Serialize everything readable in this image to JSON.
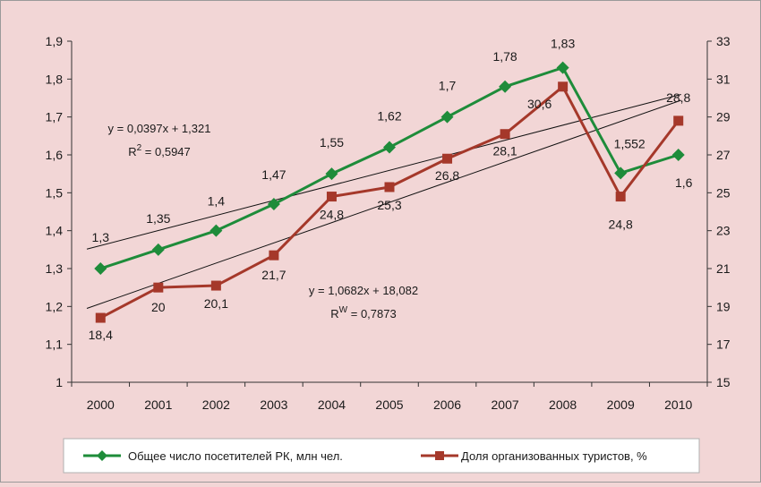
{
  "chart_data": {
    "type": "line",
    "categories": [
      "2000",
      "2001",
      "2002",
      "2003",
      "2004",
      "2005",
      "2006",
      "2007",
      "2008",
      "2009",
      "2010"
    ],
    "left_axis": {
      "min": 1,
      "max": 1.9,
      "step": 0.1,
      "ticks": [
        "1",
        "1,1",
        "1,2",
        "1,3",
        "1,4",
        "1,5",
        "1,6",
        "1,7",
        "1,8",
        "1,9"
      ]
    },
    "right_axis": {
      "min": 15,
      "max": 33,
      "step": 2,
      "ticks": [
        "15",
        "17",
        "19",
        "21",
        "23",
        "25",
        "27",
        "29",
        "31",
        "33"
      ]
    },
    "series": [
      {
        "name": "Общее число посетителей РК, млн чел.",
        "axis": "left",
        "color": "#1e8c3a",
        "marker": "diamond",
        "values": [
          1.3,
          1.35,
          1.4,
          1.47,
          1.55,
          1.62,
          1.7,
          1.78,
          1.83,
          1.552,
          1.6
        ],
        "labels": [
          "1,3",
          "1,35",
          "1,4",
          "1,47",
          "1,55",
          "1,62",
          "1,7",
          "1,78",
          "1,83",
          "1,552",
          "1,6"
        ]
      },
      {
        "name": "Доля организованных туристов, %",
        "axis": "right",
        "color": "#a5382a",
        "marker": "square",
        "values": [
          18.4,
          20,
          20.1,
          21.7,
          24.8,
          25.3,
          26.8,
          28.1,
          30.6,
          24.8,
          28.8
        ],
        "labels": [
          "18,4",
          "20",
          "20,1",
          "21,7",
          "24,8",
          "25,3",
          "26,8",
          "28,1",
          "30,6",
          "24,8",
          "28,8"
        ]
      }
    ],
    "trendlines": [
      {
        "axis": "left",
        "slope": 0.0397,
        "intercept": 1.321,
        "line1": "y = 0,0397x + 1,321",
        "line2_base": "R",
        "line2_sup": "2",
        "line2_rest": " = 0,5947"
      },
      {
        "axis": "right",
        "slope": 1.0682,
        "intercept": 18.082,
        "line1": "y = 1,0682x + 18,082",
        "line2_base": "R",
        "line2_sup": "W",
        "line2_rest": " = 0,7873"
      }
    ]
  }
}
